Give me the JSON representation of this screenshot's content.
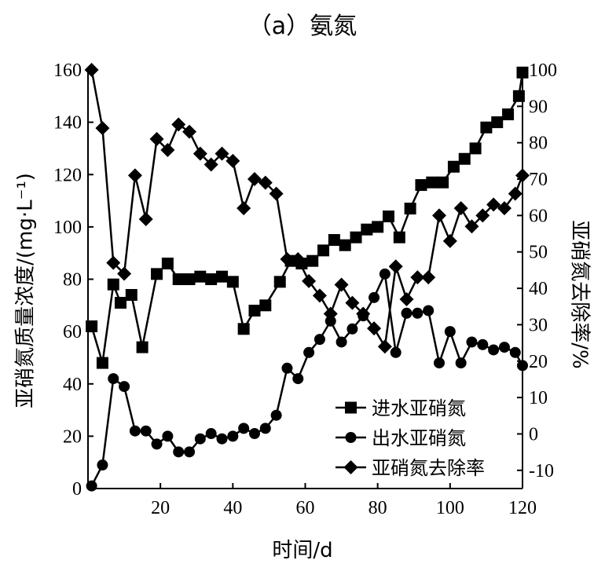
{
  "chart_data": {
    "type": "line",
    "title": "（a）氨氮",
    "xlabel": "时间/d",
    "ylabel_left": "亚硝氮质量浓度/(mg·L⁻¹)",
    "ylabel_right": "亚硝氮去除率/%",
    "xlim": [
      0,
      120
    ],
    "ylim_left": [
      0,
      160
    ],
    "ylim_right": [
      -15,
      100
    ],
    "x_ticks": [
      "20",
      "40",
      "60",
      "80",
      "100",
      "120"
    ],
    "y_ticks_left": [
      "0",
      "20",
      "40",
      "60",
      "80",
      "100",
      "120",
      "140",
      "160"
    ],
    "y_ticks_right": [
      "-10",
      "0",
      "10",
      "20",
      "30",
      "40",
      "50",
      "60",
      "70",
      "80",
      "90",
      "100"
    ],
    "legend_position": "bottom-right",
    "series": [
      {
        "name": "进水亚硝氮",
        "axis": "left",
        "marker": "square",
        "x": [
          1,
          4,
          7,
          9,
          12,
          15,
          19,
          22,
          25,
          28,
          31,
          34,
          37,
          40,
          43,
          46,
          49,
          53,
          56,
          59,
          62,
          65,
          68,
          71,
          74,
          77,
          80,
          83,
          86,
          89,
          92,
          95,
          98,
          101,
          104,
          107,
          110,
          113,
          116,
          119
        ],
        "values": [
          62,
          48,
          78,
          71,
          74,
          54,
          82,
          86,
          80,
          80,
          81,
          80,
          81,
          79,
          61,
          68,
          70,
          79,
          87,
          86,
          87,
          91,
          95,
          93,
          96,
          99,
          100,
          104,
          96,
          107,
          116,
          117,
          117,
          123,
          126,
          130,
          138,
          140,
          143,
          150
        ],
        "last_point": [
          120,
          159
        ]
      },
      {
        "name": "出水亚硝氮",
        "axis": "left",
        "marker": "circle",
        "x": [
          1,
          4,
          7,
          10,
          13,
          16,
          19,
          22,
          25,
          28,
          31,
          34,
          37,
          40,
          43,
          46,
          49,
          52,
          55,
          58,
          61,
          64,
          67,
          70,
          73,
          76,
          79,
          82,
          85,
          88,
          91,
          94,
          97,
          100,
          103,
          106,
          109,
          112,
          115,
          118,
          120
        ],
        "values": [
          1,
          9,
          42,
          39,
          22,
          22,
          17,
          20,
          14,
          14,
          19,
          21,
          19,
          20,
          23,
          21,
          23,
          28,
          46,
          42,
          52,
          57,
          64,
          56,
          61,
          66,
          73,
          82,
          52,
          67,
          67,
          68,
          48,
          60,
          48,
          56,
          55,
          53,
          54,
          52,
          47
        ]
      },
      {
        "name": "亚硝氮去除率",
        "axis": "right",
        "marker": "diamond",
        "x": [
          1,
          4,
          7,
          10,
          13,
          16,
          19,
          22,
          25,
          28,
          31,
          34,
          37,
          40,
          43,
          46,
          49,
          52,
          55,
          58,
          61,
          64,
          67,
          70,
          73,
          76,
          79,
          82,
          85,
          88,
          91,
          94,
          97,
          100,
          103,
          106,
          109,
          112,
          115,
          118,
          120
        ],
        "values": [
          100,
          84,
          47,
          44,
          71,
          59,
          81,
          78,
          85,
          83,
          77,
          74,
          77,
          75,
          62,
          70,
          69,
          66,
          48,
          48,
          42,
          38,
          33,
          41,
          36,
          33,
          29,
          24,
          46,
          37,
          43,
          43,
          60,
          53,
          62,
          57,
          60,
          63,
          62,
          66,
          71
        ]
      }
    ]
  }
}
